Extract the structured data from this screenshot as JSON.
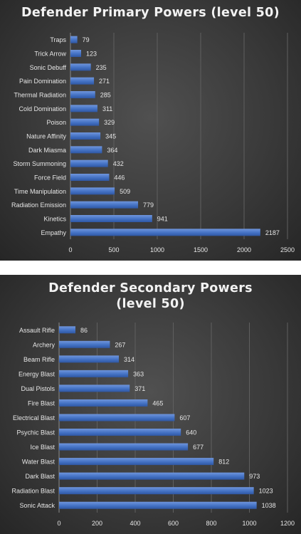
{
  "chart_data": [
    {
      "type": "bar",
      "orientation": "horizontal",
      "title": "Defender Primary  Powers (level 50)",
      "categories": [
        "Traps",
        "Trick Arrow",
        "Sonic Debuff",
        "Pain Domination",
        "Thermal Radiation",
        "Cold Domination",
        "Poison",
        "Nature Affinity",
        "Dark Miasma",
        "Storm Summoning",
        "Force Field",
        "Time Manipulation",
        "Radiation Emission",
        "Kinetics",
        "Empathy"
      ],
      "values": [
        79,
        123,
        235,
        271,
        285,
        311,
        329,
        345,
        364,
        432,
        446,
        509,
        779,
        941,
        2187
      ],
      "value_labels": [
        "79",
        "123",
        "235",
        "271",
        "285",
        "311",
        "329",
        "345",
        "364",
        "432",
        "446",
        "509",
        "779",
        "941",
        "2187"
      ],
      "xlim": [
        0,
        2500
      ],
      "xticks": [
        "0",
        "500",
        "1000",
        "1500",
        "2000",
        "2500"
      ],
      "grid": true,
      "bar_color": "#4472c4"
    },
    {
      "type": "bar",
      "orientation": "horizontal",
      "title": "Defender Secondary Powers (level 50)",
      "categories": [
        "Assault Rifle",
        "Archery",
        "Beam Rifle",
        "Energy Blast",
        "Dual Pistols",
        "Fire Blast",
        "Electrical Blast",
        "Psychic Blast",
        "Ice Blast",
        "Water Blast",
        "Dark Blast",
        "Radiation Blast",
        "Sonic Attack"
      ],
      "values": [
        86,
        267,
        314,
        363,
        371,
        465,
        607,
        640,
        677,
        812,
        973,
        1023,
        1038
      ],
      "value_labels": [
        "86",
        "267",
        "314",
        "363",
        "371",
        "465",
        "607",
        "640",
        "677",
        "812",
        "973",
        "1023",
        "1038"
      ],
      "xlim": [
        0,
        1200
      ],
      "xticks": [
        "0",
        "200",
        "400",
        "600",
        "800",
        "1000",
        "1200"
      ],
      "grid": true,
      "bar_color": "#4472c4"
    }
  ]
}
